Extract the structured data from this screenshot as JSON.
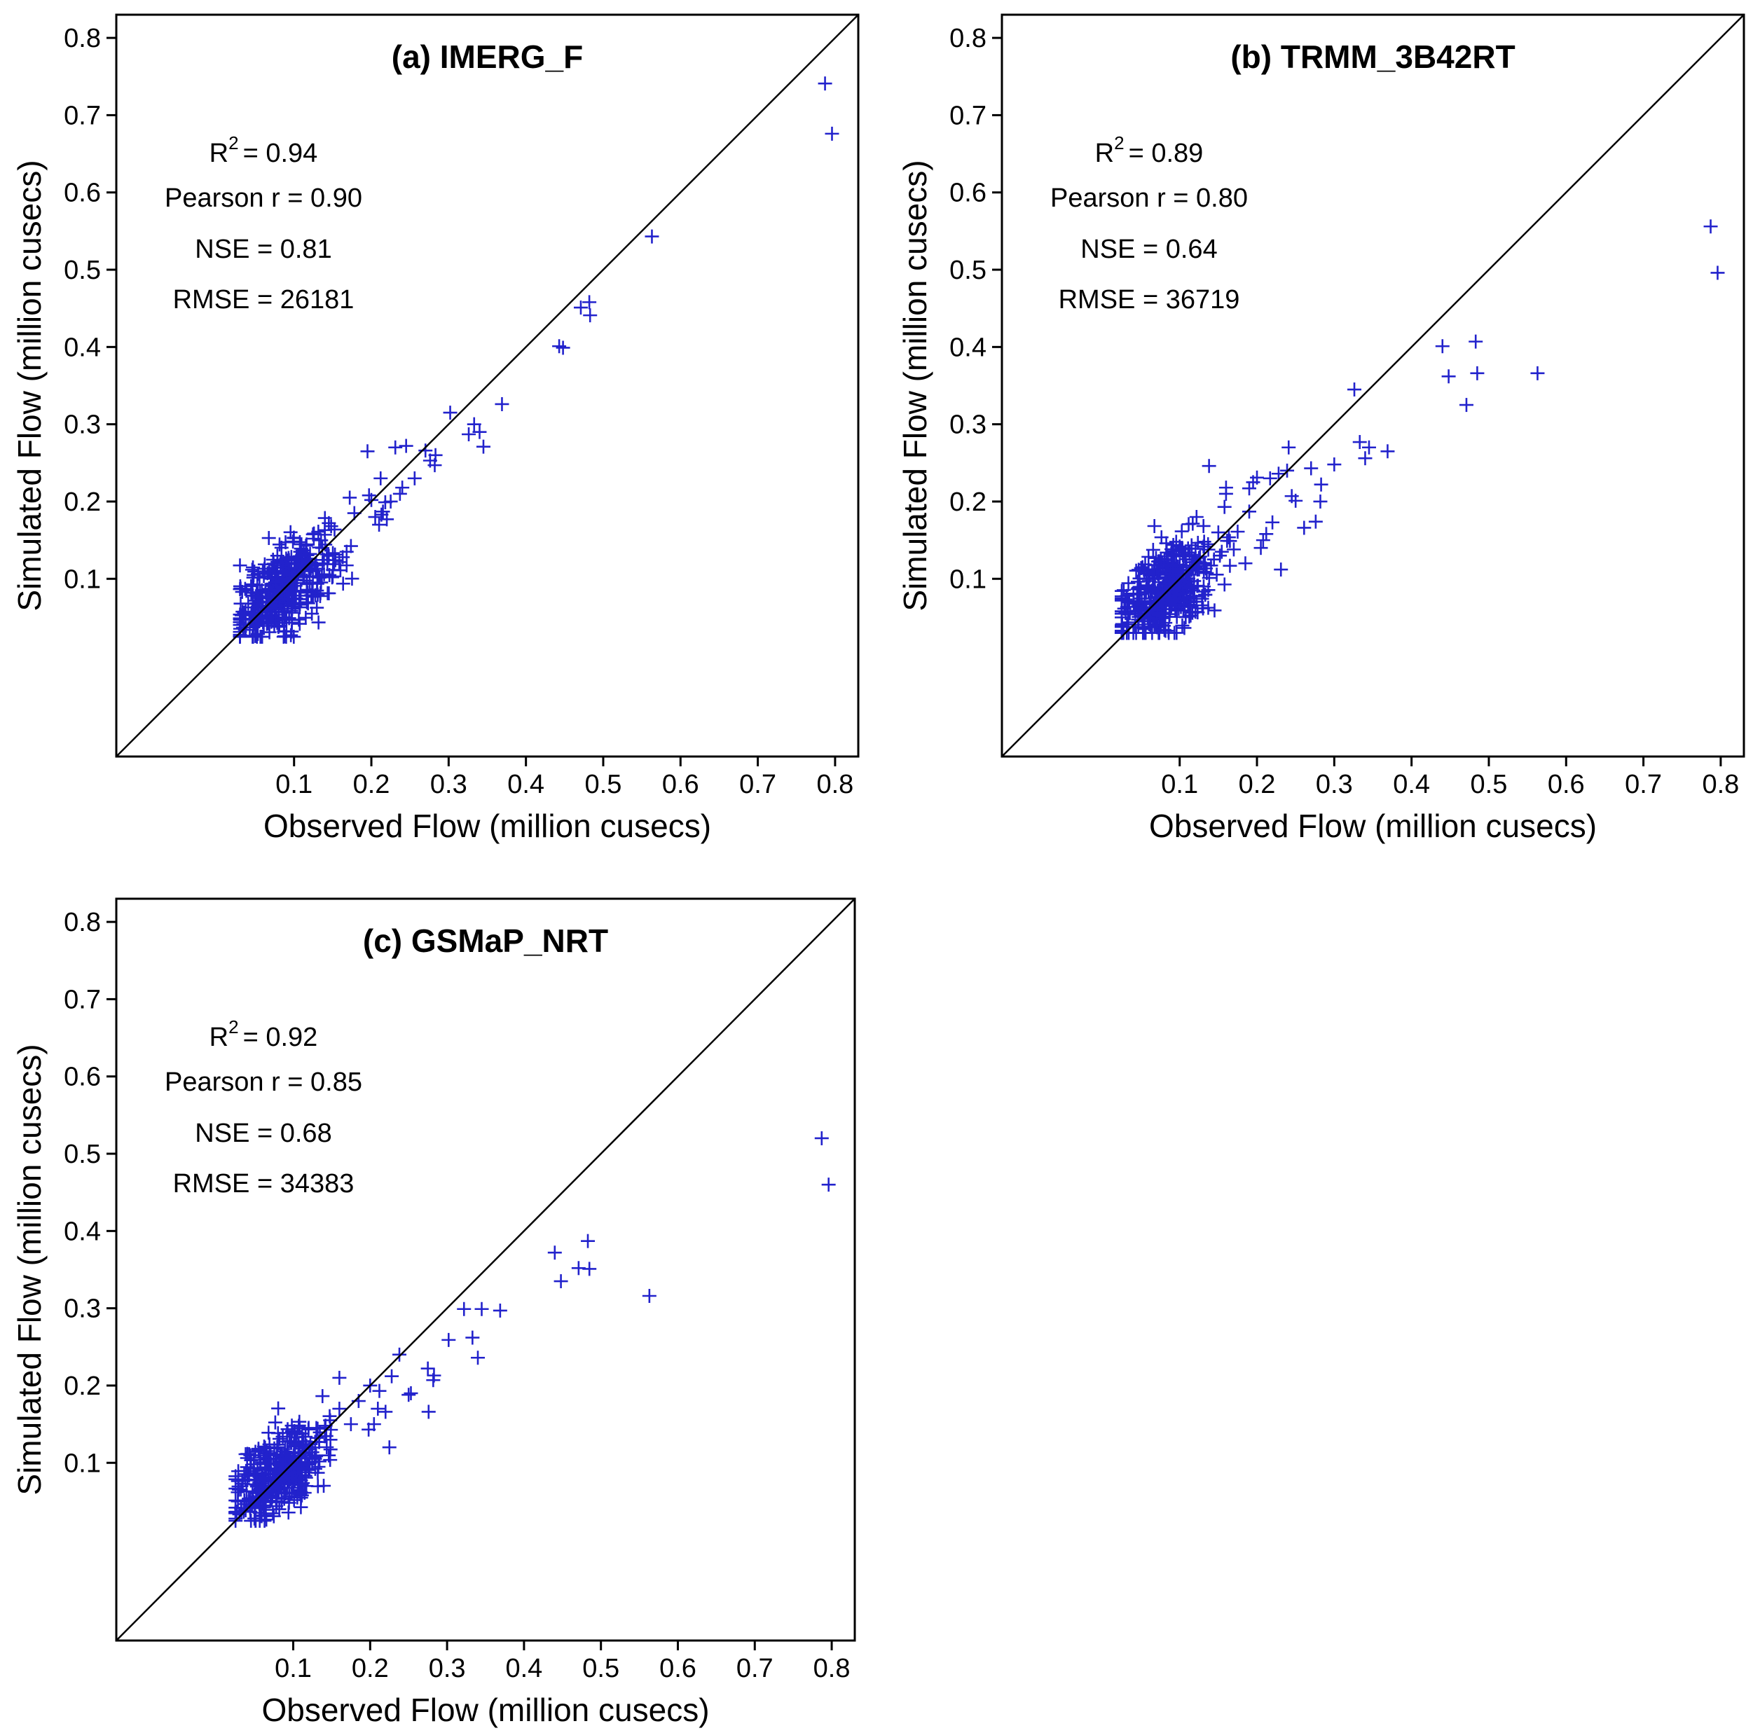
{
  "chart_data": [
    {
      "type": "scatter",
      "title": "(a) IMERG_F",
      "xlabel": "Observed Flow (million cusecs)",
      "ylabel": "Simulated Flow (million cusecs)",
      "xlim": [
        -0.13,
        0.83
      ],
      "ylim": [
        -0.13,
        0.83
      ],
      "xticks": [
        "0.1",
        "0.2",
        "0.3",
        "0.4",
        "0.5",
        "0.6",
        "0.7",
        "0.8"
      ],
      "yticks": [
        "0.1",
        "0.2",
        "0.3",
        "0.4",
        "0.5",
        "0.6",
        "0.7",
        "0.8"
      ],
      "reference_line": "1:1",
      "marker": "+",
      "marker_color": "#2222cc",
      "stats": {
        "r2_label": "R",
        "r2_sup": "2",
        "r2_value": "= 0.94",
        "pearson": "Pearson r = 0.90",
        "nse": "NSE = 0.81",
        "rmse": "RMSE = 26181"
      },
      "points": {
        "x": [
          0.787,
          0.796,
          0.563,
          0.471,
          0.482,
          0.483,
          0.443,
          0.448,
          0.369,
          0.302,
          0.333,
          0.326,
          0.34,
          0.345,
          0.27,
          0.276,
          0.282,
          0.283,
          0.245,
          0.231,
          0.24,
          0.225,
          0.218,
          0.215,
          0.22,
          0.213,
          0.205,
          0.21,
          0.197,
          0.2,
          0.212,
          0.256,
          0.237,
          0.195,
          0.172,
          0.178,
          0.168,
          0.163,
          0.16,
          0.15,
          0.145
        ],
        "y": [
          0.741,
          0.676,
          0.543,
          0.451,
          0.458,
          0.441,
          0.401,
          0.399,
          0.326,
          0.315,
          0.3,
          0.287,
          0.29,
          0.271,
          0.266,
          0.253,
          0.247,
          0.26,
          0.272,
          0.27,
          0.218,
          0.2,
          0.199,
          0.187,
          0.177,
          0.183,
          0.18,
          0.17,
          0.208,
          0.202,
          0.23,
          0.23,
          0.21,
          0.265,
          0.205,
          0.185,
          0.135,
          0.128,
          0.111,
          0.103,
          0.172
        ]
      },
      "cluster": {
        "x_range": [
          0.03,
          0.175
        ],
        "y_range": [
          0.025,
          0.19
        ],
        "n": 420,
        "center_x": 0.085,
        "center_y": 0.085,
        "spread_x": 0.032,
        "spread_y": 0.034,
        "rho": 0.62
      }
    },
    {
      "type": "scatter",
      "title": "(b) TRMM_3B42RT",
      "xlabel": "Observed Flow (million cusecs)",
      "ylabel": "Simulated Flow (million cusecs)",
      "xlim": [
        -0.13,
        0.83
      ],
      "ylim": [
        -0.13,
        0.83
      ],
      "xticks": [
        "0.1",
        "0.2",
        "0.3",
        "0.4",
        "0.5",
        "0.6",
        "0.7",
        "0.8"
      ],
      "yticks": [
        "0.1",
        "0.2",
        "0.3",
        "0.4",
        "0.5",
        "0.6",
        "0.7",
        "0.8"
      ],
      "reference_line": "1:1",
      "marker": "+",
      "marker_color": "#2222cc",
      "stats": {
        "r2_label": "R",
        "r2_sup": "2",
        "r2_value": "= 0.89",
        "pearson": "Pearson r = 0.80",
        "nse": "NSE = 0.64",
        "rmse": "RMSE = 36719"
      },
      "points": {
        "x": [
          0.787,
          0.796,
          0.44,
          0.483,
          0.448,
          0.485,
          0.563,
          0.471,
          0.326,
          0.333,
          0.34,
          0.345,
          0.369,
          0.3,
          0.283,
          0.276,
          0.27,
          0.282,
          0.261,
          0.25,
          0.245,
          0.241,
          0.231,
          0.239,
          0.228,
          0.22,
          0.217,
          0.212,
          0.208,
          0.2,
          0.19,
          0.185,
          0.17,
          0.16,
          0.16,
          0.138,
          0.158,
          0.15,
          0.152,
          0.175,
          0.19,
          0.205,
          0.195
        ],
        "y": [
          0.556,
          0.496,
          0.401,
          0.407,
          0.362,
          0.366,
          0.366,
          0.325,
          0.345,
          0.277,
          0.256,
          0.27,
          0.265,
          0.248,
          0.222,
          0.174,
          0.243,
          0.2,
          0.166,
          0.201,
          0.207,
          0.27,
          0.112,
          0.24,
          0.236,
          0.173,
          0.23,
          0.158,
          0.15,
          0.231,
          0.217,
          0.12,
          0.138,
          0.218,
          0.21,
          0.246,
          0.193,
          0.16,
          0.13,
          0.161,
          0.187,
          0.14,
          0.225
        ]
      },
      "cluster": {
        "x_range": [
          0.025,
          0.165
        ],
        "y_range": [
          0.03,
          0.2
        ],
        "n": 440,
        "center_x": 0.082,
        "center_y": 0.085,
        "spread_x": 0.032,
        "spread_y": 0.032,
        "rho": 0.45
      }
    },
    {
      "type": "scatter",
      "title": "(c) GSMaP_NRT",
      "xlabel": "Observed Flow (million cusecs)",
      "ylabel": "Simulated Flow (million cusecs)",
      "xlim": [
        -0.13,
        0.83
      ],
      "ylim": [
        -0.13,
        0.83
      ],
      "xticks": [
        "0.1",
        "0.2",
        "0.3",
        "0.4",
        "0.5",
        "0.6",
        "0.7",
        "0.8"
      ],
      "yticks": [
        "0.1",
        "0.2",
        "0.3",
        "0.4",
        "0.5",
        "0.6",
        "0.7",
        "0.8"
      ],
      "reference_line": "1:1",
      "marker": "+",
      "marker_color": "#2222cc",
      "stats": {
        "r2_label": "R",
        "r2_sup": "2",
        "r2_value": "= 0.92",
        "pearson": "Pearson r = 0.85",
        "nse": "NSE = 0.68",
        "rmse": "RMSE = 34383"
      },
      "points": {
        "x": [
          0.787,
          0.796,
          0.44,
          0.483,
          0.471,
          0.485,
          0.448,
          0.563,
          0.322,
          0.345,
          0.369,
          0.333,
          0.302,
          0.34,
          0.238,
          0.275,
          0.282,
          0.283,
          0.276,
          0.25,
          0.253,
          0.228,
          0.22,
          0.21,
          0.2,
          0.205,
          0.198,
          0.225,
          0.212,
          0.185,
          0.175,
          0.16,
          0.16,
          0.148,
          0.142,
          0.13
        ],
        "y": [
          0.52,
          0.46,
          0.372,
          0.387,
          0.352,
          0.351,
          0.335,
          0.316,
          0.299,
          0.299,
          0.297,
          0.262,
          0.259,
          0.236,
          0.24,
          0.222,
          0.207,
          0.213,
          0.166,
          0.188,
          0.19,
          0.212,
          0.166,
          0.17,
          0.2,
          0.15,
          0.143,
          0.12,
          0.193,
          0.18,
          0.15,
          0.21,
          0.17,
          0.155,
          0.148,
          0.145
        ]
      },
      "cluster": {
        "x_range": [
          0.025,
          0.16
        ],
        "y_range": [
          0.025,
          0.2
        ],
        "n": 420,
        "center_x": 0.082,
        "center_y": 0.085,
        "spread_x": 0.03,
        "spread_y": 0.032,
        "rho": 0.55
      }
    }
  ]
}
